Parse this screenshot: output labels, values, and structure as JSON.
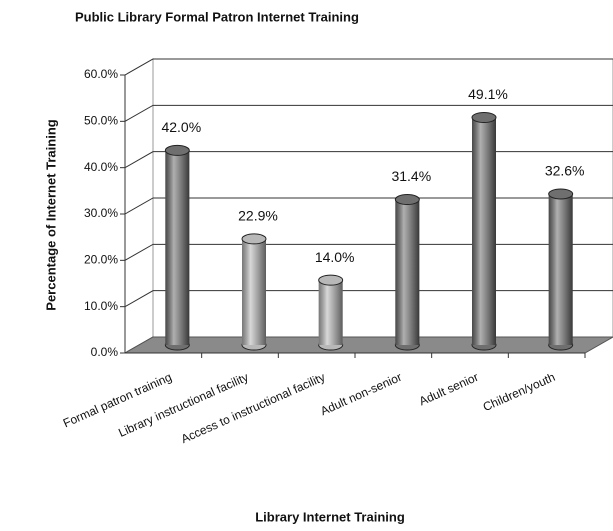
{
  "chart_data": {
    "type": "bar3d",
    "title": "Public Library Formal Patron Internet Training",
    "xlabel": "Library Internet Training",
    "ylabel": "Percentage of Internet Training",
    "categories": [
      "Formal patron training",
      "Library instructional facility",
      "Access to instructional facility",
      "Adult non-senior",
      "Adult senior",
      "Children/youth"
    ],
    "values": [
      42.0,
      22.9,
      14.0,
      31.4,
      49.1,
      32.6
    ],
    "value_labels": [
      "42.0%",
      "22.9%",
      "14.0%",
      "31.4%",
      "49.1%",
      "32.6%"
    ],
    "colors": [
      "#6f6f6f",
      "#b8b8b8",
      "#b8b8b8",
      "#6f6f6f",
      "#6f6f6f",
      "#6f6f6f"
    ],
    "ylim": [
      0,
      60
    ],
    "yticks": [
      {
        "value": 0,
        "label": "0.0%"
      },
      {
        "value": 10,
        "label": "10.0%"
      },
      {
        "value": 20,
        "label": "20.0%"
      },
      {
        "value": 30,
        "label": "30.0%"
      },
      {
        "value": 40,
        "label": "40.0%"
      },
      {
        "value": 50,
        "label": "50.0%"
      },
      {
        "value": 60,
        "label": "60.0%"
      }
    ],
    "grid": true
  }
}
